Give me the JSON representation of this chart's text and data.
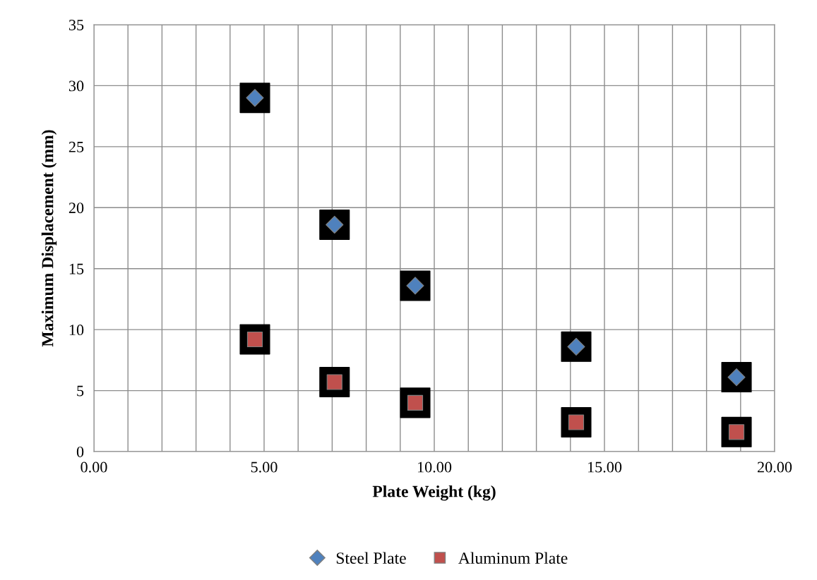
{
  "chart_data": {
    "type": "scatter",
    "xlabel": "Plate Weight (kg)",
    "ylabel": "Maximum Displacement (mm)",
    "xlim": [
      0,
      20
    ],
    "ylim": [
      0,
      35
    ],
    "xticks": [
      {
        "value": 0,
        "label": "0.00"
      },
      {
        "value": 1,
        "label": null
      },
      {
        "value": 2,
        "label": null
      },
      {
        "value": 3,
        "label": null
      },
      {
        "value": 4,
        "label": null
      },
      {
        "value": 5,
        "label": "5.00"
      },
      {
        "value": 6,
        "label": null
      },
      {
        "value": 7,
        "label": null
      },
      {
        "value": 8,
        "label": null
      },
      {
        "value": 9,
        "label": null
      },
      {
        "value": 10,
        "label": "10.00"
      },
      {
        "value": 11,
        "label": null
      },
      {
        "value": 12,
        "label": null
      },
      {
        "value": 13,
        "label": null
      },
      {
        "value": 14,
        "label": null
      },
      {
        "value": 15,
        "label": "15.00"
      },
      {
        "value": 16,
        "label": null
      },
      {
        "value": 17,
        "label": null
      },
      {
        "value": 18,
        "label": null
      },
      {
        "value": 19,
        "label": null
      },
      {
        "value": 20,
        "label": "20.00"
      }
    ],
    "yticks": [
      0,
      5,
      10,
      15,
      20,
      25,
      30,
      35
    ],
    "grid": true,
    "legend": "bottom",
    "series": [
      {
        "name": "Steel Plate",
        "color": "#4f81bd",
        "marker": "diamond",
        "x": [
          4.73,
          7.07,
          9.44,
          14.17,
          18.88
        ],
        "values": [
          29.0,
          18.6,
          13.6,
          8.6,
          6.1
        ]
      },
      {
        "name": "Aluminum Plate",
        "color": "#c0504d",
        "marker": "square",
        "x": [
          4.73,
          7.07,
          9.44,
          14.17,
          18.88
        ],
        "values": [
          9.2,
          5.7,
          4.0,
          2.4,
          1.6
        ]
      }
    ]
  }
}
